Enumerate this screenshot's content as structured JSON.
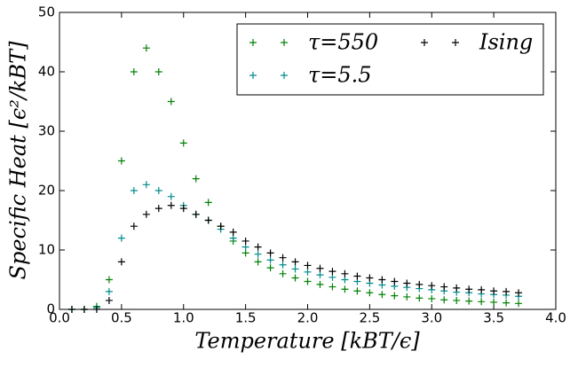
{
  "chart_data": {
    "type": "scatter",
    "x_label": "Temperature [kBT/ϵ]",
    "y_label": "Specific Heat [ϵ²/kBT]",
    "x": [
      0.1,
      0.2,
      0.3,
      0.4,
      0.5,
      0.6,
      0.7,
      0.8,
      0.9,
      1.0,
      1.1,
      1.2,
      1.3,
      1.4,
      1.5,
      1.6,
      1.7,
      1.8,
      1.9,
      2.0,
      2.1,
      2.2,
      2.3,
      2.4,
      2.5,
      2.6,
      2.7,
      2.8,
      2.9,
      3.0,
      3.1,
      3.2,
      3.3,
      3.4,
      3.5,
      3.6,
      3.7
    ],
    "series": [
      {
        "name": "τ=550",
        "color": "#008000",
        "values": [
          0,
          0,
          0.5,
          5,
          25,
          40,
          44,
          40,
          35,
          28,
          22,
          18,
          14,
          11.5,
          9.5,
          8,
          7,
          6,
          5.3,
          4.7,
          4.2,
          3.8,
          3.4,
          3.1,
          2.8,
          2.5,
          2.3,
          2.1,
          1.9,
          1.8,
          1.6,
          1.5,
          1.4,
          1.3,
          1.2,
          1.1,
          1.0
        ]
      },
      {
        "name": "τ=5.5",
        "color": "#008b8b",
        "values": [
          0,
          0,
          0.3,
          3,
          12,
          20,
          21,
          20,
          19,
          17.5,
          16,
          15,
          13.5,
          12,
          10.5,
          9.3,
          8.3,
          7.5,
          6.8,
          6.3,
          5.8,
          5.4,
          5.0,
          4.7,
          4.4,
          4.1,
          3.9,
          3.7,
          3.5,
          3.3,
          3.1,
          2.9,
          2.8,
          2.6,
          2.5,
          2.4,
          2.2
        ]
      },
      {
        "name": "Ising",
        "color": "#000000",
        "values": [
          0,
          0,
          0,
          1.5,
          8,
          14,
          16,
          17,
          17.5,
          17,
          16,
          15,
          14,
          13,
          11.5,
          10.5,
          9.5,
          8.7,
          8,
          7.4,
          6.9,
          6.4,
          6.0,
          5.6,
          5.3,
          5.0,
          4.7,
          4.4,
          4.2,
          4.0,
          3.8,
          3.6,
          3.4,
          3.3,
          3.1,
          3.0,
          2.8
        ]
      }
    ],
    "xlim": [
      0,
      4
    ],
    "xticks": [
      {
        "value": 0,
        "label": "0.0"
      },
      {
        "value": 0.5,
        "label": "0.5"
      },
      {
        "value": 1,
        "label": "1.0"
      },
      {
        "value": 1.5,
        "label": "1.5"
      },
      {
        "value": 2,
        "label": "2.0"
      },
      {
        "value": 2.5,
        "label": "2.5"
      },
      {
        "value": 3,
        "label": "3.0"
      },
      {
        "value": 3.5,
        "label": "3.5"
      },
      {
        "value": 4,
        "label": "4.0"
      }
    ],
    "ylim": [
      0,
      50
    ],
    "yticks": [
      0,
      10,
      20,
      30,
      40,
      50
    ],
    "legend": "upper right"
  }
}
